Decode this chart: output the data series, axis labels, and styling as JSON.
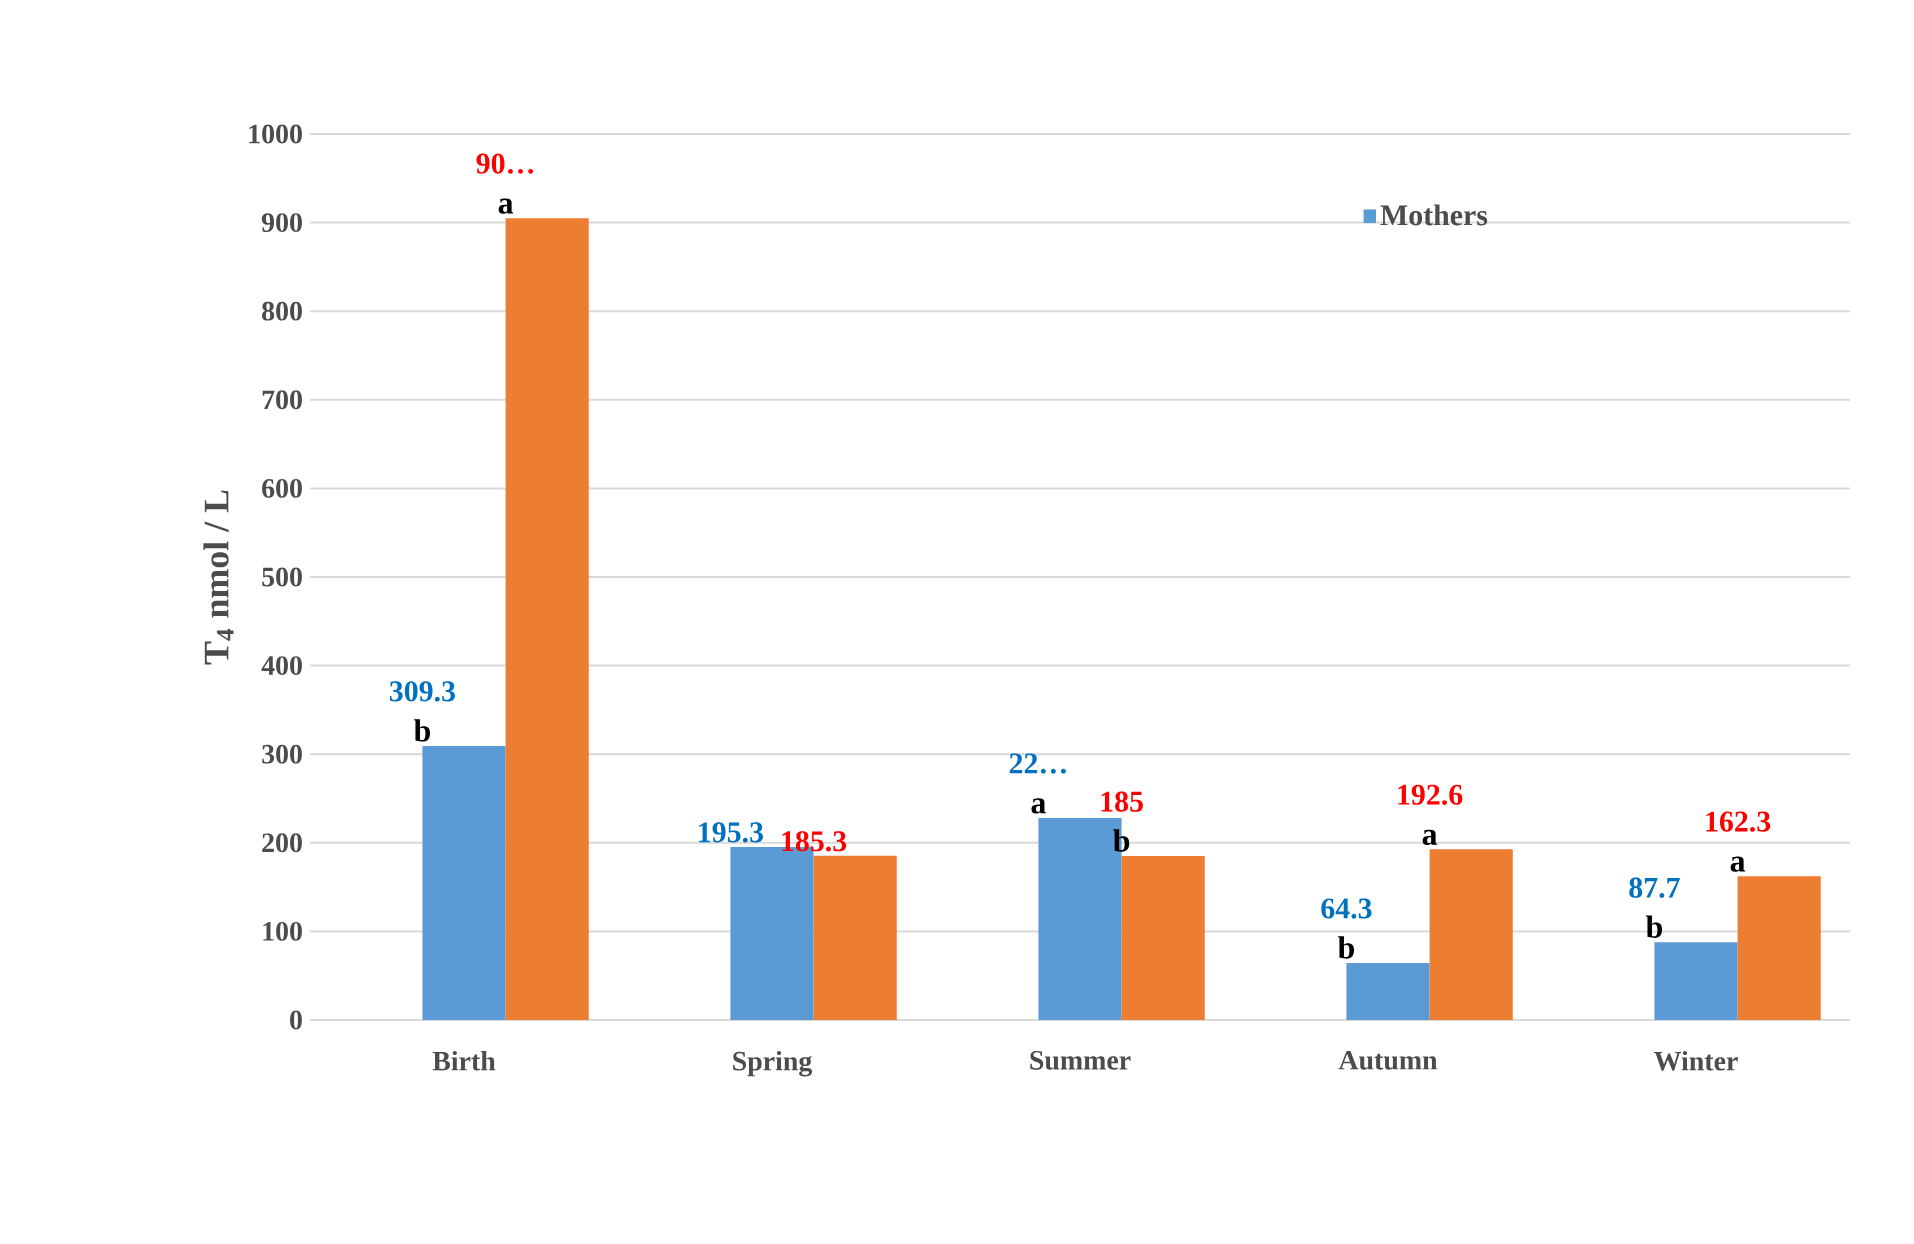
{
  "chart_data": {
    "type": "bar",
    "ylabel": "T$_{4}$ nmol / L",
    "categories": [
      "Birth",
      "Spring",
      "Summer",
      "Autumn",
      "Winter"
    ],
    "series": [
      {
        "name": "Mothers",
        "color": "#5b9bd5",
        "values": [
          309.3,
          195.3,
          228,
          64.3,
          87.7
        ],
        "value_labels": [
          "309.3",
          "195.3",
          "22…",
          "64.3",
          "87.7"
        ]
      },
      {
        "color": "#ed7d31",
        "values": [
          905,
          185.3,
          185,
          192.6,
          162.3
        ],
        "value_labels": [
          "90…",
          "185.3",
          "185",
          "192.6",
          "162.3"
        ]
      }
    ],
    "ylim": [
      0,
      1000
    ],
    "yticks": [
      0,
      100,
      200,
      300,
      400,
      500,
      600,
      700,
      800,
      900,
      1000
    ],
    "grid": "y",
    "legend": "top right",
    "annotations": [
      "b",
      "a",
      "a",
      "b",
      "b",
      "a",
      "b",
      "a"
    ]
  }
}
